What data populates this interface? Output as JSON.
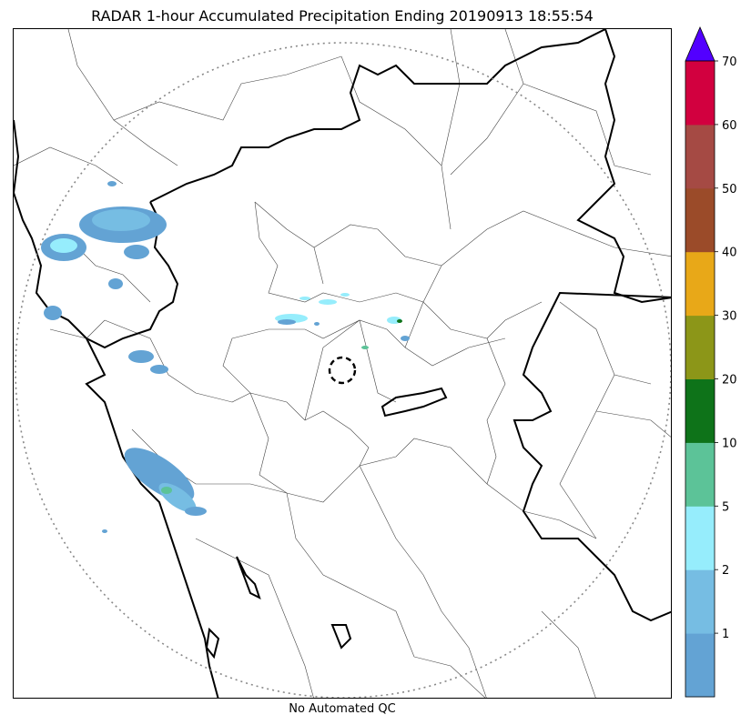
{
  "title": "RADAR 1-hour Accumulated Precipitation Ending 20190913 18:55:54",
  "footer": "No Automated QC",
  "colorbar": {
    "bins": [
      {
        "from": null,
        "to": 1,
        "color": "#63a3d4"
      },
      {
        "from": 1,
        "to": 2,
        "color": "#76bde3"
      },
      {
        "from": 2,
        "to": 5,
        "color": "#96edfc"
      },
      {
        "from": 5,
        "to": 10,
        "color": "#5cc398"
      },
      {
        "from": 10,
        "to": 20,
        "color": "#0e7319"
      },
      {
        "from": 20,
        "to": 30,
        "color": "#8c9618"
      },
      {
        "from": 30,
        "to": 40,
        "color": "#e8a818"
      },
      {
        "from": 40,
        "to": 50,
        "color": "#9b4b29"
      },
      {
        "from": 50,
        "to": 60,
        "color": "#a54a44"
      },
      {
        "from": 60,
        "to": 70,
        "color": "#d2003f"
      }
    ],
    "tick_labels": [
      "1",
      "2",
      "5",
      "10",
      "20",
      "30",
      "40",
      "50",
      "60",
      "70"
    ],
    "over_color": "#5200ff",
    "extend": "max"
  },
  "map": {
    "radar_range_ring": "dotted",
    "radar_site_marker": "dashed circle",
    "state_boundary_color": "#000000",
    "district_boundary_color": "#444444"
  }
}
